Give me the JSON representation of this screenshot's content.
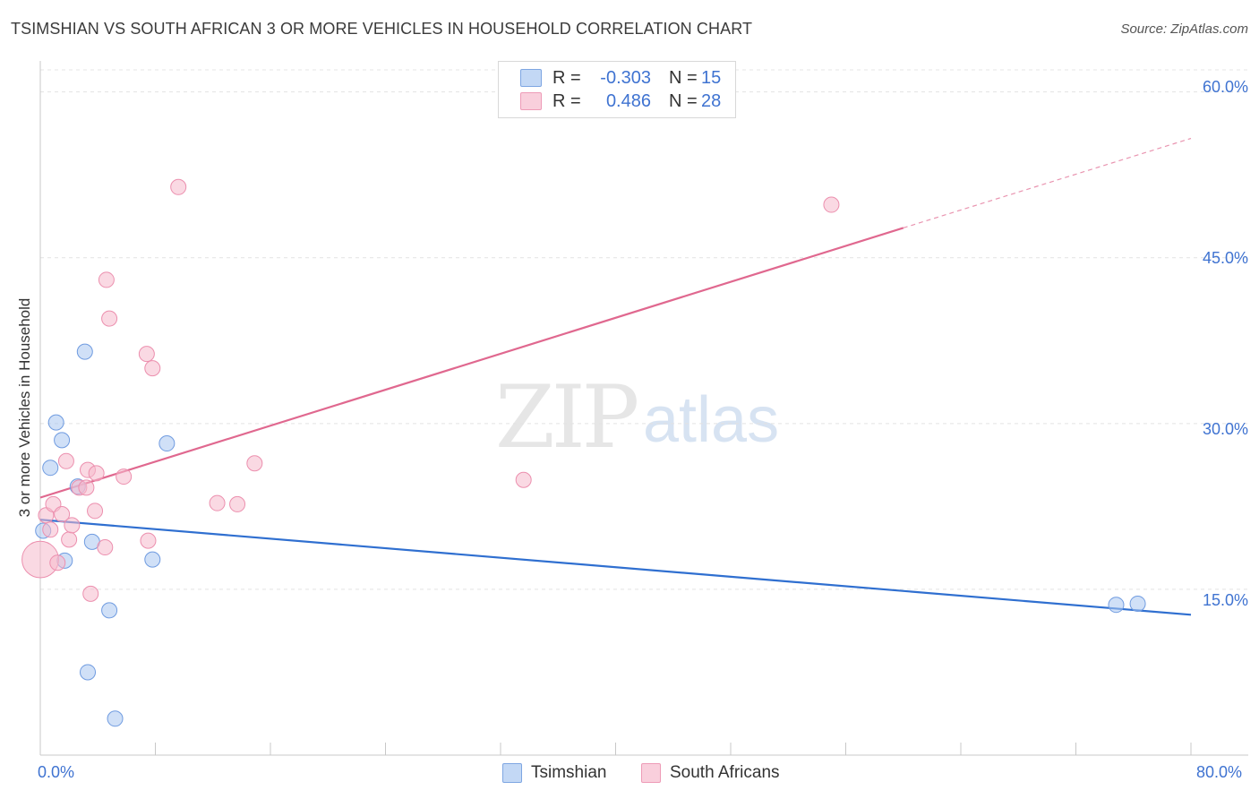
{
  "header": {
    "title": "TSIMSHIAN VS SOUTH AFRICAN 3 OR MORE VEHICLES IN HOUSEHOLD CORRELATION CHART",
    "source": "Source: ZipAtlas.com"
  },
  "watermark": {
    "zip": "ZIP",
    "atlas": "atlas"
  },
  "legend": {
    "rows": [
      {
        "r_label": "R =",
        "r_value": "-0.303",
        "n_label": "N =",
        "n_value": "15",
        "color": "#a9c7f0"
      },
      {
        "r_label": "R =",
        "r_value": "0.486",
        "n_label": "N =",
        "n_value": "28",
        "color": "#f6b9cc"
      }
    ]
  },
  "chart_data": {
    "type": "scatter",
    "title": "TSIMSHIAN VS SOUTH AFRICAN 3 OR MORE VEHICLES IN HOUSEHOLD CORRELATION CHART",
    "xlabel": "",
    "ylabel": "3 or more Vehicles in Household",
    "xlim": [
      0,
      80
    ],
    "ylim": [
      0,
      62
    ],
    "x_tick_labels": [
      "0.0%",
      "80.0%"
    ],
    "y_ticks": [
      15,
      30,
      45,
      60
    ],
    "y_tick_labels": [
      "15.0%",
      "30.0%",
      "45.0%",
      "60.0%"
    ],
    "series": [
      {
        "name": "Tsimshian",
        "color": "#a9c7f0",
        "edge": "#6f9be0",
        "line_color": "#2f6fd0",
        "trend": {
          "x": [
            0,
            80
          ],
          "y": [
            21.3,
            12.7
          ]
        },
        "points": [
          {
            "x": 0.2,
            "y": 20.3
          },
          {
            "x": 0.7,
            "y": 26.0
          },
          {
            "x": 1.1,
            "y": 30.1
          },
          {
            "x": 1.5,
            "y": 28.5
          },
          {
            "x": 1.7,
            "y": 17.6
          },
          {
            "x": 2.6,
            "y": 24.3
          },
          {
            "x": 3.1,
            "y": 36.5
          },
          {
            "x": 3.3,
            "y": 7.5
          },
          {
            "x": 3.6,
            "y": 19.3
          },
          {
            "x": 4.8,
            "y": 13.1
          },
          {
            "x": 5.2,
            "y": 3.3
          },
          {
            "x": 7.8,
            "y": 17.7
          },
          {
            "x": 8.8,
            "y": 28.2
          },
          {
            "x": 74.8,
            "y": 13.6
          },
          {
            "x": 76.3,
            "y": 13.7
          }
        ]
      },
      {
        "name": "South Africans",
        "color": "#f6b9cc",
        "edge": "#ec8fae",
        "line_color": "#e0688f",
        "trend": {
          "x": [
            0,
            60
          ],
          "y": [
            23.3,
            47.7
          ]
        },
        "trend_dashed": {
          "x": [
            60,
            80
          ],
          "y": [
            47.7,
            55.8
          ]
        },
        "points": [
          {
            "x": 0.0,
            "y": 17.7,
            "size": 2.4
          },
          {
            "x": 0.4,
            "y": 21.7
          },
          {
            "x": 0.7,
            "y": 20.4
          },
          {
            "x": 0.9,
            "y": 22.7
          },
          {
            "x": 1.2,
            "y": 17.4
          },
          {
            "x": 1.5,
            "y": 21.8
          },
          {
            "x": 1.8,
            "y": 26.6
          },
          {
            "x": 2.0,
            "y": 19.5
          },
          {
            "x": 2.2,
            "y": 20.8
          },
          {
            "x": 2.7,
            "y": 24.2
          },
          {
            "x": 3.2,
            "y": 24.2
          },
          {
            "x": 3.3,
            "y": 25.8
          },
          {
            "x": 3.5,
            "y": 14.6
          },
          {
            "x": 3.8,
            "y": 22.1
          },
          {
            "x": 3.9,
            "y": 25.5
          },
          {
            "x": 4.5,
            "y": 18.8
          },
          {
            "x": 4.6,
            "y": 43.0
          },
          {
            "x": 4.8,
            "y": 39.5
          },
          {
            "x": 5.8,
            "y": 25.2
          },
          {
            "x": 7.4,
            "y": 36.3
          },
          {
            "x": 7.5,
            "y": 19.4
          },
          {
            "x": 7.8,
            "y": 35.0
          },
          {
            "x": 9.6,
            "y": 51.4
          },
          {
            "x": 12.3,
            "y": 22.8
          },
          {
            "x": 13.7,
            "y": 22.7
          },
          {
            "x": 14.9,
            "y": 26.4
          },
          {
            "x": 33.6,
            "y": 24.9
          },
          {
            "x": 55.0,
            "y": 49.8
          }
        ]
      }
    ]
  },
  "bottom_legend": {
    "items": [
      {
        "label": "Tsimshian",
        "color": "#a9c7f0"
      },
      {
        "label": "South Africans",
        "color": "#f6b9cc"
      }
    ]
  }
}
